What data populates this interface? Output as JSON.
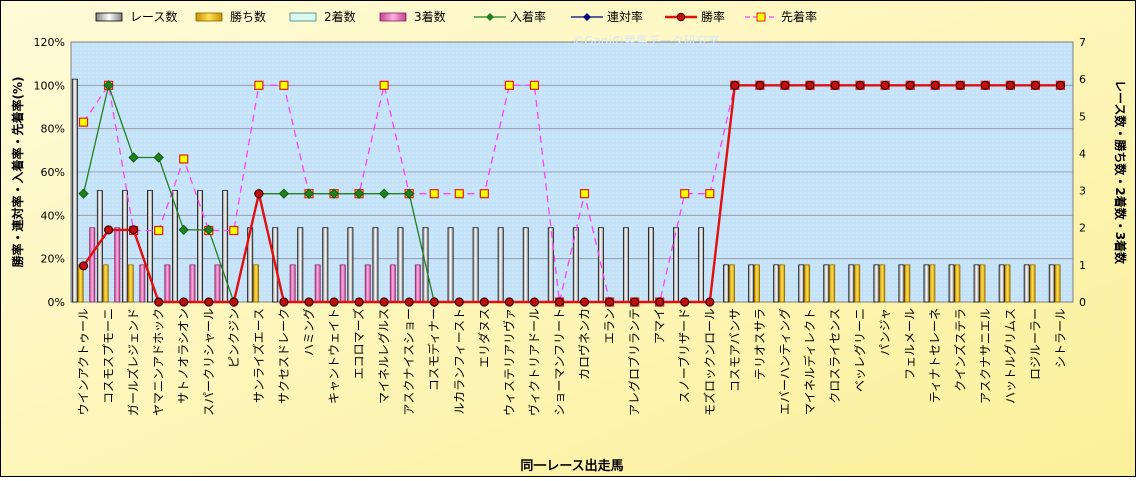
{
  "chart_data": {
    "type": "bar",
    "categories": [
      "ウインアクトゥール",
      "コスモスプモーニ",
      "ガールズレジェンド",
      "ヤマニンアドホック",
      "サトノオラシオン",
      "スパークリシャール",
      "ピンクジン",
      "サンライズエース",
      "サクセスドレーク",
      "ハミング",
      "キャントウェイト",
      "エコロマーズ",
      "マイネルレグルス",
      "アスクナイスショー",
      "コスモディナー",
      "ルカランフィースト",
      "エリダヌス",
      "ウィステリアリヴァ",
      "ヴィクトリアドール",
      "ショーマンフリート",
      "カロヴネンカ",
      "エラン",
      "アレグロブリランテ",
      "アマイ",
      "スノーブリザード",
      "モズロックンロール",
      "コスモアバンサ",
      "テリオスサラ",
      "エバーハンティング",
      "マイネルディレクト",
      "クロスライセンス",
      "ベッレグリーニ",
      "パンジャ",
      "フェルメール",
      "ティナトセレーネ",
      "クインズステラ",
      "アスクナサニエル",
      "ハットルグリムス",
      "ロジルーラー",
      "シトラール"
    ],
    "series": [
      {
        "name": "レース数",
        "axis": "right",
        "values": [
          6,
          3,
          3,
          3,
          3,
          3,
          3,
          2,
          2,
          2,
          2,
          2,
          2,
          2,
          2,
          2,
          2,
          2,
          2,
          2,
          2,
          2,
          2,
          2,
          2,
          2,
          1,
          1,
          1,
          1,
          1,
          1,
          1,
          1,
          1,
          1,
          1,
          1,
          1,
          1
        ]
      },
      {
        "name": "勝ち数",
        "axis": "right",
        "values": [
          1,
          1,
          1,
          0,
          0,
          0,
          0,
          1,
          0,
          0,
          0,
          0,
          0,
          0,
          0,
          0,
          0,
          0,
          0,
          0,
          0,
          0,
          0,
          0,
          0,
          0,
          1,
          1,
          1,
          1,
          1,
          1,
          1,
          1,
          1,
          1,
          1,
          1,
          1,
          1
        ]
      },
      {
        "name": "2着数",
        "axis": "right",
        "values": [
          0,
          0,
          0,
          0,
          0,
          0,
          0,
          0,
          0,
          0,
          0,
          0,
          0,
          0,
          0,
          0,
          0,
          0,
          0,
          0,
          0,
          0,
          0,
          0,
          0,
          0,
          0,
          0,
          0,
          0,
          0,
          0,
          0,
          0,
          0,
          0,
          0,
          0,
          0,
          0
        ]
      },
      {
        "name": "3着数",
        "axis": "right",
        "values": [
          2,
          2,
          1,
          1,
          1,
          1,
          0,
          0,
          1,
          1,
          1,
          1,
          1,
          1,
          0,
          0,
          0,
          0,
          0,
          0,
          0,
          0,
          0,
          0,
          0,
          0,
          0,
          0,
          0,
          0,
          0,
          0,
          0,
          0,
          0,
          0,
          0,
          0,
          0,
          0
        ]
      },
      {
        "name": "入着率",
        "axis": "left",
        "values": [
          50,
          100,
          66.7,
          66.7,
          33.3,
          33.3,
          0,
          50,
          50,
          50,
          50,
          50,
          50,
          50,
          0,
          null,
          null,
          null,
          null,
          null,
          null,
          null,
          null,
          null,
          null,
          null,
          null,
          null,
          null,
          null,
          null,
          null,
          null,
          null,
          null,
          null,
          null,
          null,
          null,
          null
        ]
      },
      {
        "name": "連対率",
        "axis": "left",
        "values": [
          null,
          null,
          null,
          null,
          null,
          null,
          null,
          null,
          null,
          null,
          null,
          null,
          null,
          null,
          null,
          null,
          null,
          null,
          null,
          null,
          null,
          null,
          null,
          null,
          null,
          null,
          null,
          null,
          null,
          null,
          null,
          null,
          null,
          null,
          null,
          null,
          null,
          null,
          null,
          null
        ]
      },
      {
        "name": "勝率",
        "axis": "left",
        "values": [
          16.7,
          33.3,
          33.3,
          0,
          0,
          0,
          0,
          50,
          0,
          0,
          0,
          0,
          0,
          0,
          0,
          0,
          0,
          0,
          0,
          0,
          0,
          0,
          0,
          0,
          0,
          0,
          100,
          100,
          100,
          100,
          100,
          100,
          100,
          100,
          100,
          100,
          100,
          100,
          100,
          100
        ]
      },
      {
        "name": "先着率",
        "axis": "left",
        "values": [
          83,
          100,
          33,
          33,
          66,
          33,
          33,
          100,
          100,
          50,
          50,
          50,
          100,
          50,
          50,
          50,
          50,
          100,
          100,
          0,
          50,
          0,
          0,
          0,
          50,
          50,
          100,
          100,
          100,
          100,
          100,
          100,
          100,
          100,
          100,
          100,
          100,
          100,
          100,
          100
        ]
      }
    ],
    "title": "",
    "watermark": "©Ganiの競馬データ研究室",
    "xlabel": "同一レース出走馬",
    "ylabel": "勝率・連対率・入着率・先着率(%)",
    "y2label": "レース数・勝ち数・2着数・3着数",
    "ylim": [
      0,
      120
    ],
    "y2lim": [
      0,
      7
    ],
    "yticks": [
      "0%",
      "20%",
      "40%",
      "60%",
      "80%",
      "100%",
      "120%"
    ],
    "y2ticks": [
      "0",
      "1",
      "2",
      "3",
      "4",
      "5",
      "6",
      "7"
    ],
    "grid": true,
    "legend": "top",
    "colors": {
      "レース数": "#ffffff",
      "勝ち数": "#f0c020",
      "2着数": "#d8f8f0",
      "3着数": "#f090c0",
      "入着率": "#208020",
      "連対率": "#000080",
      "勝率": "#e01010",
      "先着率": "#ff40ff",
      "plot_bg": "#c0e0f8",
      "outer_bg": "#fdf7b0"
    }
  }
}
